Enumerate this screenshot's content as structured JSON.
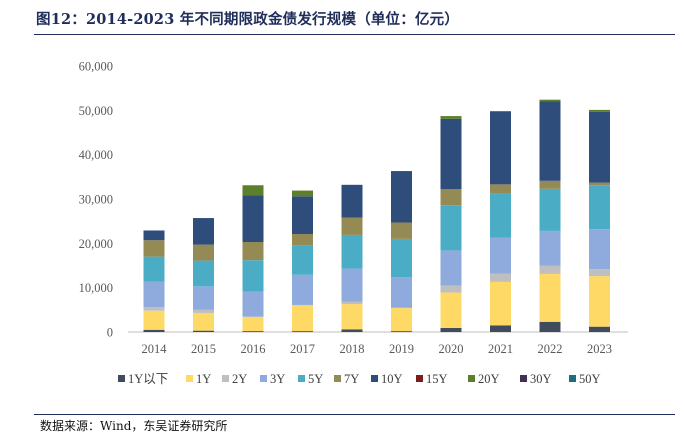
{
  "title": "图12：2014-2023 年不同期限政金债发行规模（单位：亿元）",
  "source": "数据来源：Wind，东吴证券研究所",
  "colors": {
    "1Y以下": "#404b5c",
    "1Y": "#ffd966",
    "2Y": "#bfbfbf",
    "3Y": "#8faadc",
    "5Y": "#4bacc6",
    "7Y": "#948a54",
    "10Y": "#2e4d7b",
    "15Y": "#7b1d1d",
    "20Y": "#5b7f2a",
    "30Y": "#403152",
    "50Y": "#1f6e7a"
  },
  "chart_data": {
    "type": "bar",
    "stacked": true,
    "categories": [
      "2014",
      "2015",
      "2016",
      "2017",
      "2018",
      "2019",
      "2020",
      "2021",
      "2022",
      "2023"
    ],
    "ylim": [
      0,
      60000
    ],
    "yticks": [
      "0",
      "10,000",
      "20,000",
      "30,000",
      "40,000",
      "50,000",
      "60,000"
    ],
    "grid": false,
    "legend_position": "bottom",
    "series": [
      {
        "name": "1Y以下",
        "values": [
          500,
          300,
          200,
          200,
          600,
          200,
          900,
          1500,
          2300,
          1200
        ]
      },
      {
        "name": "1Y",
        "values": [
          4300,
          4000,
          3200,
          5800,
          5700,
          5200,
          8000,
          9800,
          10800,
          11400
        ]
      },
      {
        "name": "2Y",
        "values": [
          800,
          700,
          100,
          100,
          500,
          100,
          1600,
          1900,
          1900,
          1600
        ]
      },
      {
        "name": "3Y",
        "values": [
          5800,
          5300,
          5600,
          6800,
          7500,
          6900,
          7900,
          8100,
          7800,
          9000
        ]
      },
      {
        "name": "5Y",
        "values": [
          5600,
          5800,
          7100,
          6700,
          7600,
          8600,
          10200,
          9900,
          9500,
          9900
        ]
      },
      {
        "name": "7Y",
        "values": [
          3700,
          3600,
          4100,
          2500,
          3900,
          3700,
          3600,
          2100,
          1800,
          600
        ]
      },
      {
        "name": "10Y",
        "values": [
          2200,
          6000,
          10500,
          8500,
          7400,
          11600,
          15900,
          16500,
          17900,
          16000
        ]
      },
      {
        "name": "15Y",
        "values": [
          0,
          0,
          0,
          0,
          0,
          0,
          0,
          0,
          0,
          0
        ]
      },
      {
        "name": "20Y",
        "values": [
          0,
          0,
          2300,
          1300,
          0,
          0,
          600,
          0,
          400,
          400
        ]
      },
      {
        "name": "30Y",
        "values": [
          0,
          0,
          0,
          0,
          0,
          0,
          0,
          0,
          0,
          0
        ]
      },
      {
        "name": "50Y",
        "values": [
          0,
          0,
          0,
          0,
          0,
          0,
          0,
          0,
          0,
          0
        ]
      }
    ]
  }
}
